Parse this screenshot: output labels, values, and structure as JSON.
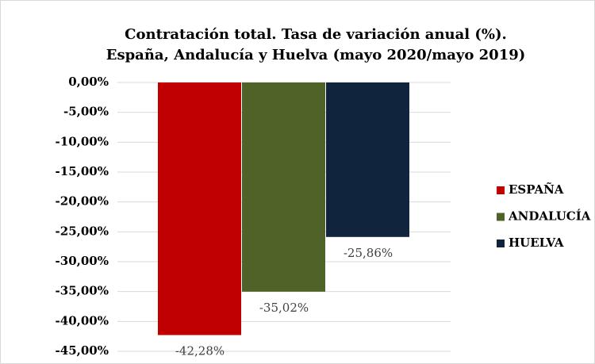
{
  "chart_data": {
    "type": "bar",
    "title": [
      "Contratación total. Tasa de variación anual (%).",
      "España, Andalucía y Huelva (mayo 2020/mayo 2019)"
    ],
    "categories": [
      null
    ],
    "series": [
      {
        "name": "ESPAÑA",
        "color": "#c00000",
        "values": [
          -42.28
        ],
        "value_labels": [
          "-42,28%"
        ]
      },
      {
        "name": "ANDALUCÍA",
        "color": "#4f6228",
        "values": [
          -35.02
        ],
        "value_labels": [
          "-35,02%"
        ]
      },
      {
        "name": "HUELVA",
        "color": "#10243e",
        "values": [
          -25.86
        ],
        "value_labels": [
          "-25,86%"
        ]
      }
    ],
    "ylim": [
      -45,
      0
    ],
    "yticks": [
      {
        "value": 0,
        "label": "0,00%"
      },
      {
        "value": -5,
        "label": "-5,00%"
      },
      {
        "value": -10,
        "label": "-10,00%"
      },
      {
        "value": -15,
        "label": "-15,00%"
      },
      {
        "value": -20,
        "label": "-20,00%"
      },
      {
        "value": -25,
        "label": "-25,00%"
      },
      {
        "value": -30,
        "label": "-30,00%"
      },
      {
        "value": -35,
        "label": "-35,00%"
      },
      {
        "value": -40,
        "label": "-40,00%"
      },
      {
        "value": -45,
        "label": "-45,00%"
      }
    ],
    "grid": true,
    "legend": "right"
  }
}
